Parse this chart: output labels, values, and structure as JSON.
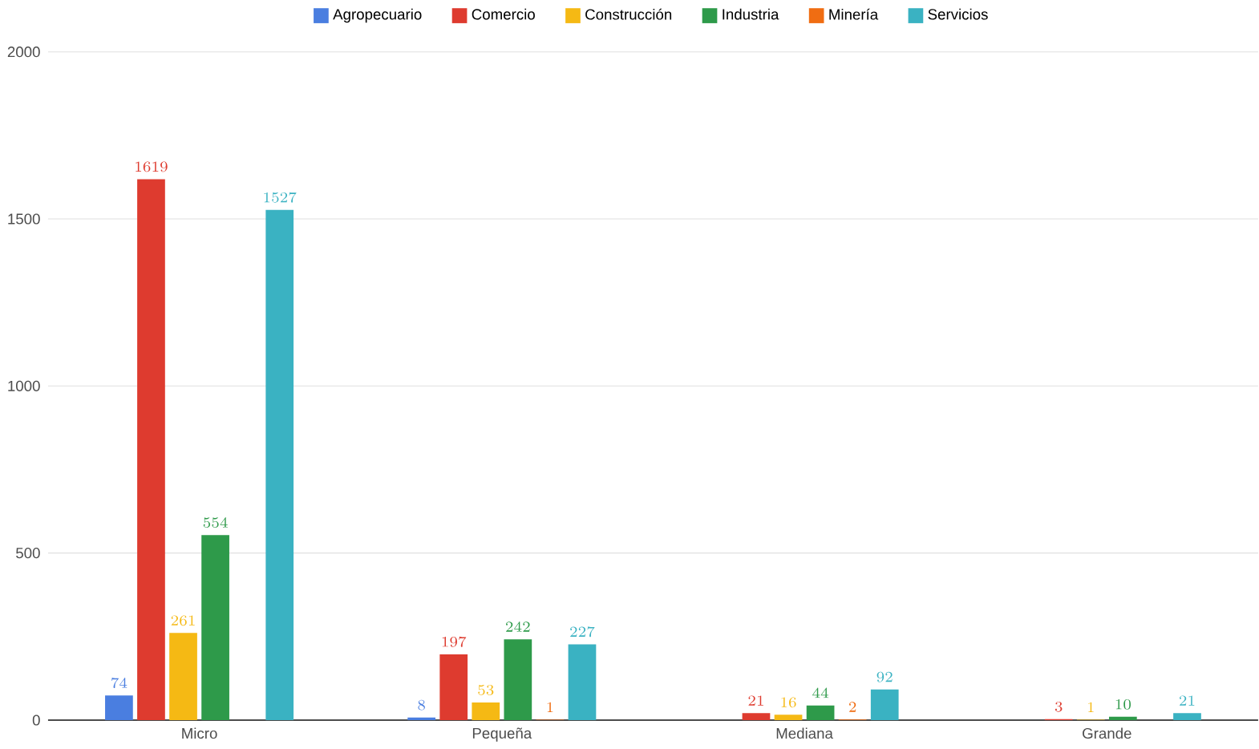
{
  "chart_data": {
    "type": "bar",
    "categories": [
      "Micro",
      "Pequeña",
      "Mediana",
      "Grande"
    ],
    "series": [
      {
        "name": "Agropecuario",
        "color": "#4a7ee0",
        "values": [
          74,
          8,
          null,
          null
        ]
      },
      {
        "name": "Comercio",
        "color": "#de3b2f",
        "values": [
          1619,
          197,
          21,
          3
        ]
      },
      {
        "name": "Construcción",
        "color": "#f5b914",
        "values": [
          261,
          53,
          16,
          1
        ]
      },
      {
        "name": "Industria",
        "color": "#2e9a4a",
        "values": [
          554,
          242,
          44,
          10
        ]
      },
      {
        "name": "Minería",
        "color": "#f06d12",
        "values": [
          null,
          1,
          2,
          null
        ]
      },
      {
        "name": "Servicios",
        "color": "#3ab2c2",
        "values": [
          1527,
          227,
          92,
          21
        ]
      }
    ],
    "ylim": [
      0,
      2000
    ],
    "yticks": [
      0,
      500,
      1000,
      1500,
      2000
    ],
    "grid": "y",
    "legend": "top",
    "data_labels": true
  }
}
